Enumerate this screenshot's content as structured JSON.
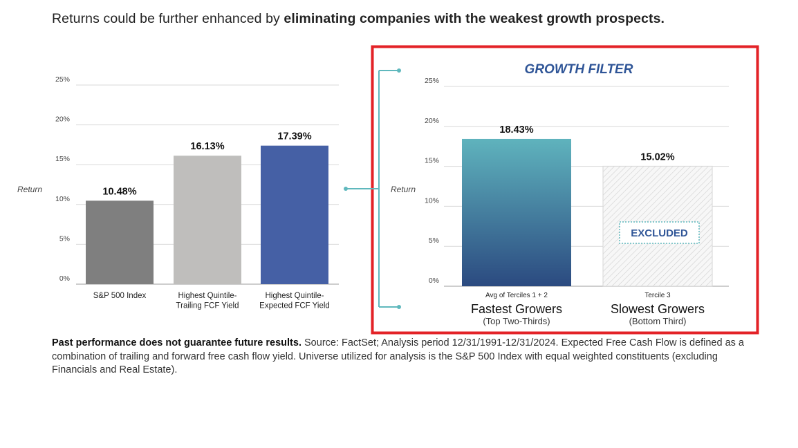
{
  "headline": {
    "normal": "Returns could be further enhanced by ",
    "bold": "eliminating companies with the weakest growth prospects."
  },
  "colors": {
    "sp500": "#7f7f7f",
    "trailing": "#bfbebc",
    "expected": "#4560a5",
    "growth_top": "#5fb3bd",
    "growth_bottom": "#2b4a80",
    "highlight_border": "#e32227",
    "connector": "#5fb8bd",
    "filter_text": "#2f5597"
  },
  "chart_data": [
    {
      "type": "bar",
      "title": "",
      "ylabel": "Return",
      "ylim": [
        0,
        25
      ],
      "ytick_labels": [
        "0%",
        "5%",
        "10%",
        "15%",
        "20%",
        "25%"
      ],
      "categories": [
        [
          "S&P 500 Index"
        ],
        [
          "Highest Quintile-",
          "Trailing FCF Yield"
        ],
        [
          "Highest Quintile-",
          "Expected FCF Yield"
        ]
      ],
      "values": [
        10.48,
        16.13,
        17.39
      ],
      "value_labels": [
        "10.48%",
        "16.13%",
        "17.39%"
      ],
      "grid": true
    },
    {
      "type": "bar",
      "title": "GROWTH FILTER",
      "ylabel": "Return",
      "ylim": [
        0,
        25
      ],
      "ytick_labels": [
        "0%",
        "5%",
        "10%",
        "15%",
        "20%",
        "25%"
      ],
      "categories": [
        "Avg of Terciles 1 + 2",
        "Tercile 3"
      ],
      "group_titles": [
        "Fastest Growers",
        "Slowest Growers"
      ],
      "group_subtitles": [
        "(Top Two-Thirds)",
        "(Bottom Third)"
      ],
      "values": [
        18.43,
        15.02
      ],
      "value_labels": [
        "18.43%",
        "15.02%"
      ],
      "excluded_label": "EXCLUDED",
      "grid": true
    }
  ],
  "footnote": {
    "bold": "Past performance does not guarantee future results.",
    "text": " Source: FactSet; Analysis period 12/31/1991-12/31/2024. Expected Free Cash Flow is defined as a combination of trailing and forward free cash flow yield. Universe utilized for analysis is the S&P 500 Index with equal weighted constituents (excluding Financials and Real Estate)."
  }
}
